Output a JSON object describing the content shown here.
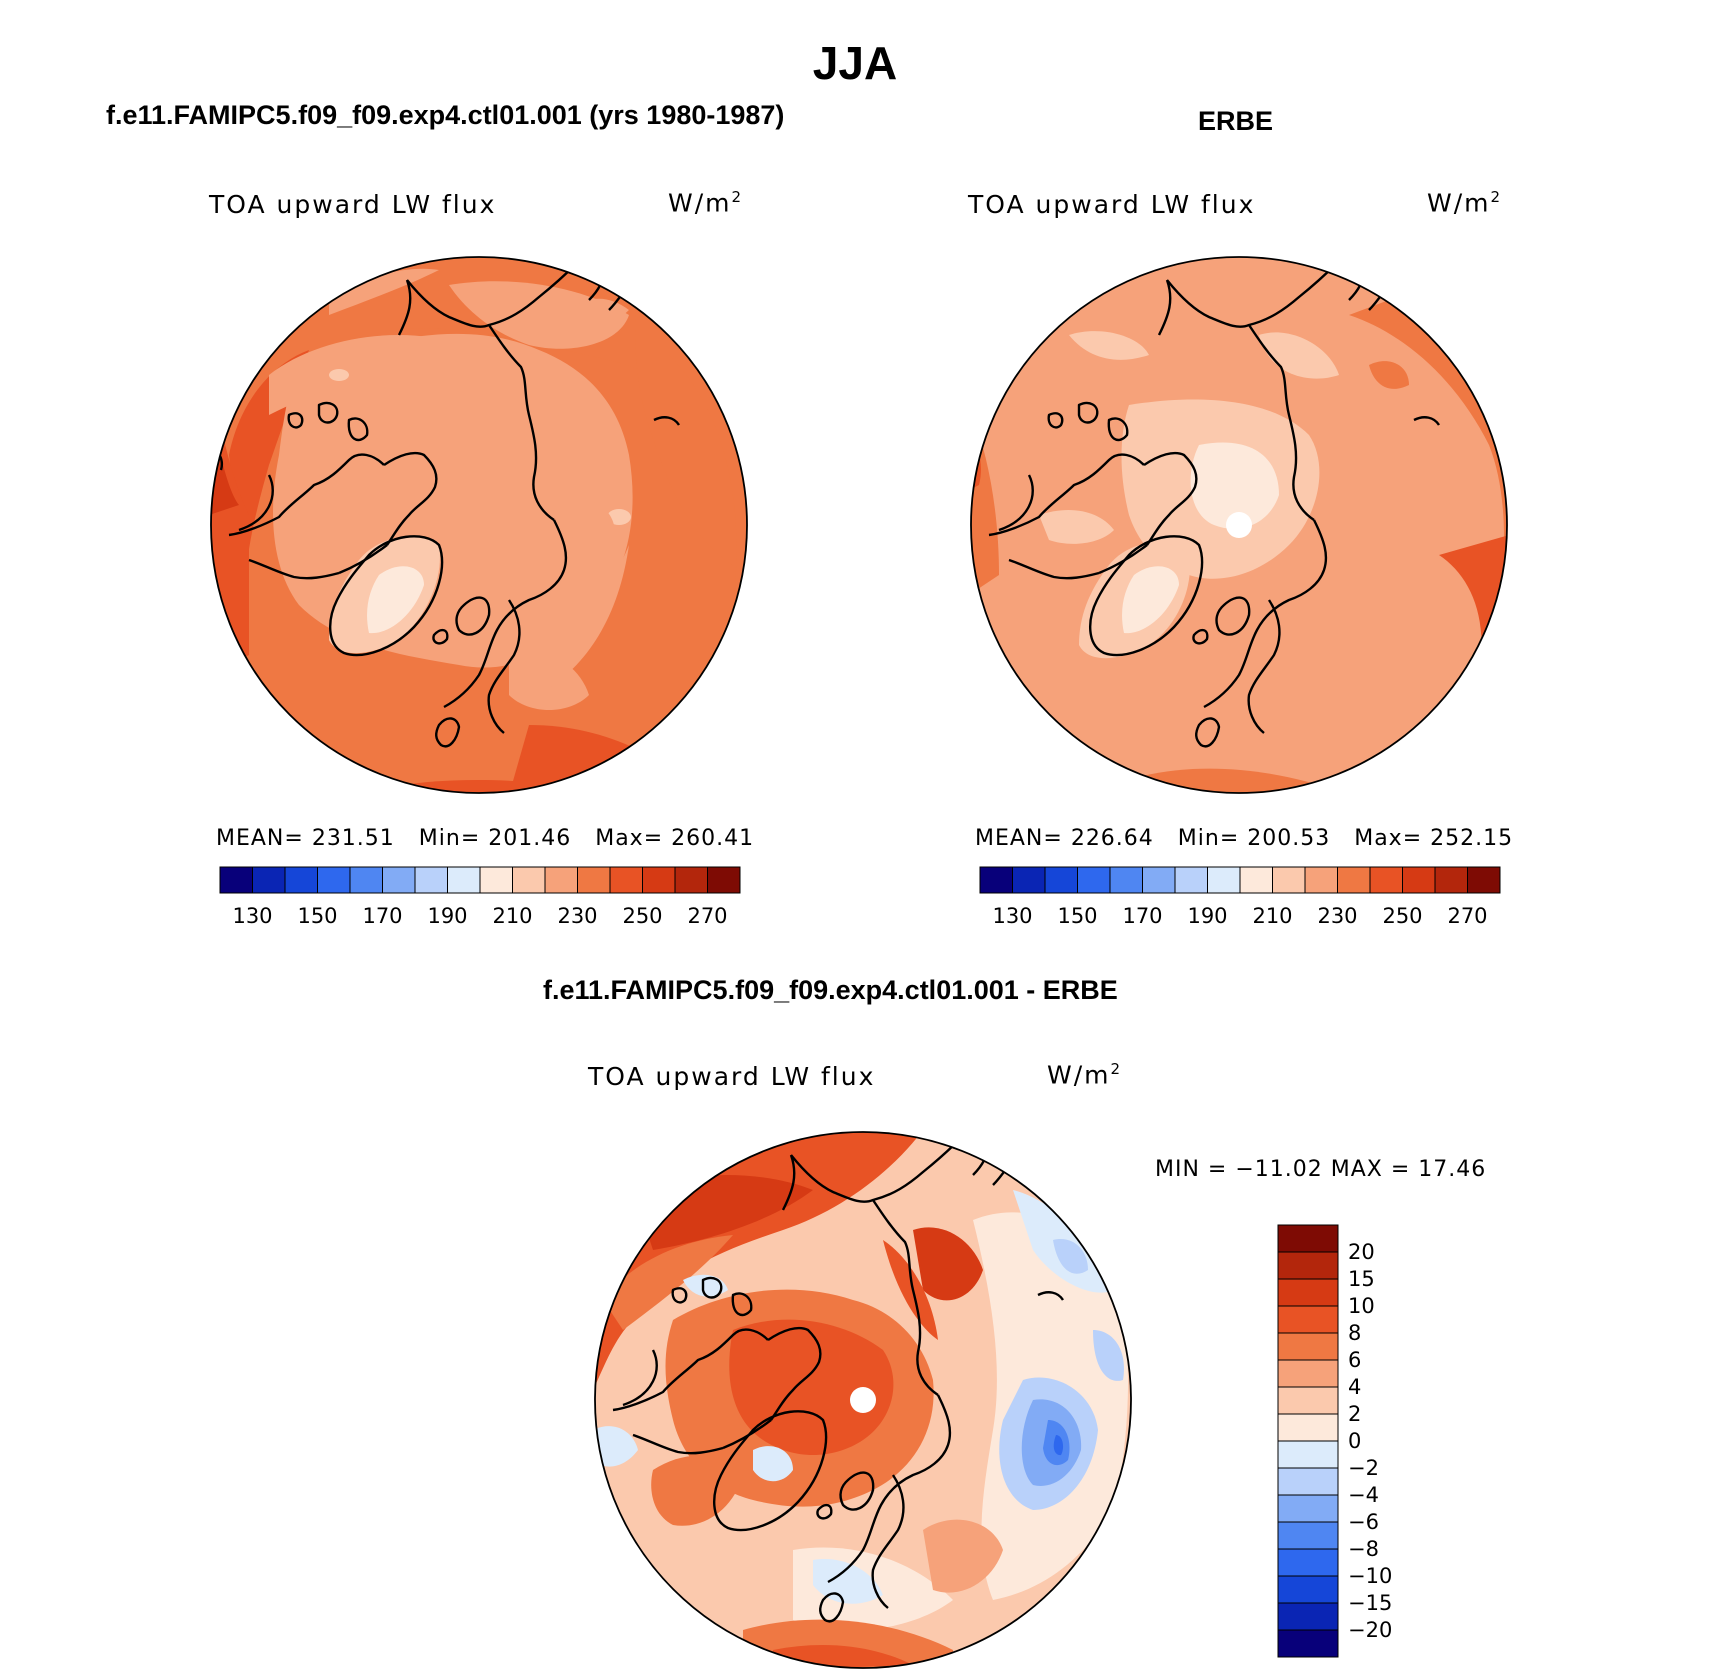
{
  "header": {
    "season": "JJA"
  },
  "panels": [
    {
      "id": "model",
      "title": "f.e11.FAMIPC5.f09_f09.exp4.ctl01.001 (yrs 1980-1987)",
      "variable": "TOA upward LW flux",
      "units_base": "W/m",
      "units_exp": "2",
      "mean_label": "MEAN= 231.51",
      "min_label": "Min= 201.46",
      "max_label": "Max= 260.41"
    },
    {
      "id": "obs",
      "title": "ERBE",
      "variable": "TOA upward LW flux",
      "units_base": "W/m",
      "units_exp": "2",
      "mean_label": "MEAN= 226.64",
      "min_label": "Min= 200.53",
      "max_label": "Max= 252.15"
    },
    {
      "id": "diff",
      "title": "f.e11.FAMIPC5.f09_f09.exp4.ctl01.001 - ERBE",
      "variable": "TOA upward LW flux",
      "units_base": "W/m",
      "units_exp": "2",
      "minmax_label": "MIN = −11.02 MAX =  17.46"
    }
  ],
  "chart_data": [
    {
      "type": "heatmap",
      "projection": "north polar stereographic",
      "title": "f.e11.FAMIPC5.f09_f09.exp4.ctl01.001 (yrs 1980-1987)",
      "variable": "TOA upward LW flux",
      "units": "W/m2",
      "mean": 231.51,
      "min": 201.46,
      "max": 260.41,
      "colorbar_levels": [
        130,
        150,
        170,
        190,
        210,
        230,
        250,
        270
      ],
      "colorbar_colors": [
        "#08007a",
        "#0a25b4",
        "#1546d8",
        "#2e68ee",
        "#4f86f2",
        "#82abf5",
        "#b9d1fa",
        "#dcebfb",
        "#fde9db",
        "#fbc9ad",
        "#f6a27a",
        "#ef7843",
        "#e85325",
        "#d63a14",
        "#b3260c",
        "#7e0b04"
      ],
      "colorbar_tick_labels": [
        "130",
        "150",
        "170",
        "190",
        "210",
        "230",
        "250",
        "270"
      ]
    },
    {
      "type": "heatmap",
      "projection": "north polar stereographic",
      "title": "ERBE",
      "variable": "TOA upward LW flux",
      "units": "W/m2",
      "mean": 226.64,
      "min": 200.53,
      "max": 252.15,
      "colorbar_levels": [
        130,
        150,
        170,
        190,
        210,
        230,
        250,
        270
      ],
      "colorbar_colors": [
        "#08007a",
        "#0a25b4",
        "#1546d8",
        "#2e68ee",
        "#4f86f2",
        "#82abf5",
        "#b9d1fa",
        "#dcebfb",
        "#fde9db",
        "#fbc9ad",
        "#f6a27a",
        "#ef7843",
        "#e85325",
        "#d63a14",
        "#b3260c",
        "#7e0b04"
      ],
      "colorbar_tick_labels": [
        "130",
        "150",
        "170",
        "190",
        "210",
        "230",
        "250",
        "270"
      ]
    },
    {
      "type": "heatmap",
      "projection": "north polar stereographic",
      "title": "f.e11.FAMIPC5.f09_f09.exp4.ctl01.001 - ERBE",
      "variable": "TOA upward LW flux",
      "units": "W/m2",
      "min": -11.02,
      "max": 17.46,
      "colorbar_levels": [
        20,
        15,
        10,
        8,
        6,
        4,
        2,
        0,
        -2,
        -4,
        -6,
        -8,
        -10,
        -15,
        -20
      ],
      "colorbar_colors": [
        "#7e0b04",
        "#b3260c",
        "#d63a14",
        "#e85325",
        "#ef7843",
        "#f6a27a",
        "#fbc9ad",
        "#fde9db",
        "#dcebfb",
        "#b9d1fa",
        "#82abf5",
        "#4f86f2",
        "#2e68ee",
        "#1546d8",
        "#0a25b4",
        "#08007a"
      ],
      "colorbar_tick_labels": [
        "20",
        "15",
        "10",
        "8",
        "6",
        "4",
        "2",
        "0",
        "−2",
        "−4",
        "−6",
        "−8",
        "−10",
        "−15",
        "−20"
      ]
    }
  ]
}
